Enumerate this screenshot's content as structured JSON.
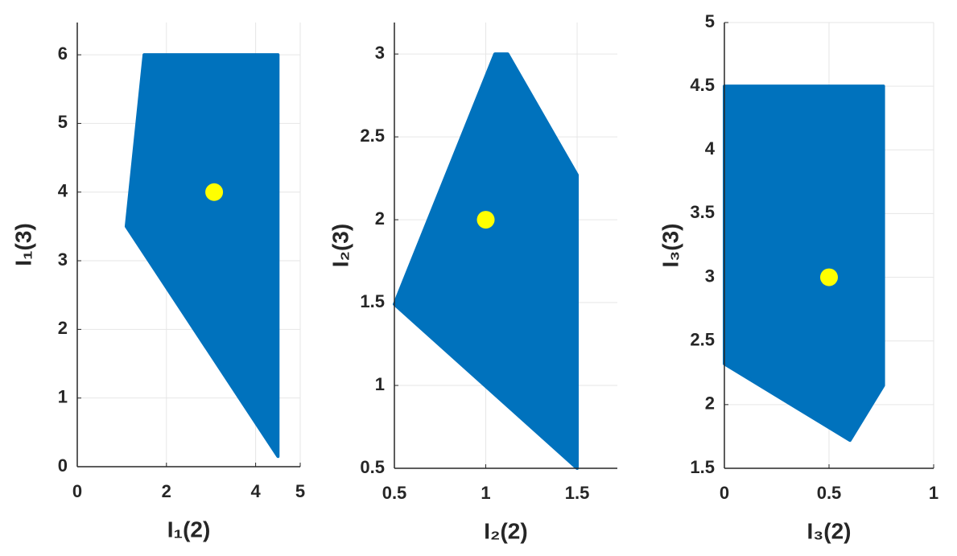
{
  "chart_data": [
    {
      "type": "region",
      "color": "#0072bd",
      "point_color": "#ffff00",
      "grid": true,
      "xlabel": "I₁(2)",
      "ylabel": "I₁(3)",
      "xlim": [
        0,
        5
      ],
      "ylim": [
        0,
        6.47
      ],
      "xticks": [
        0,
        2,
        4,
        5
      ],
      "yticks": [
        0,
        1,
        2,
        3,
        4,
        5,
        6
      ],
      "polygon": {
        "x": [
          1.5,
          4.5,
          4.5,
          1.1
        ],
        "y": [
          6,
          6,
          0.15,
          3.5
        ]
      },
      "point": {
        "x": 3.07,
        "y": 4
      }
    },
    {
      "type": "region",
      "color": "#0072bd",
      "point_color": "#ffff00",
      "grid": true,
      "xlabel": "I₂(2)",
      "ylabel": "I₂(3)",
      "xlim": [
        0.5,
        1.72
      ],
      "ylim": [
        0.5,
        3.19
      ],
      "xticks": [
        0.5,
        1,
        1.5
      ],
      "yticks": [
        0.5,
        1,
        1.5,
        2,
        2.5,
        3
      ],
      "polygon": {
        "x": [
          1.05,
          1.12,
          1.5,
          1.5,
          0.5
        ],
        "y": [
          3,
          3,
          2.27,
          0.5,
          1.49
        ]
      },
      "point": {
        "x": 1,
        "y": 2
      }
    },
    {
      "type": "region",
      "color": "#0072bd",
      "point_color": "#ffff00",
      "grid": true,
      "xlabel": "I₃(2)",
      "ylabel": "I₃(3)",
      "xlim": [
        0,
        1
      ],
      "ylim": [
        1.5,
        5
      ],
      "xticks": [
        0,
        0.5,
        1
      ],
      "yticks": [
        1.5,
        2,
        2.5,
        3,
        3.5,
        4,
        4.5,
        5
      ],
      "polygon": {
        "x": [
          0,
          0.76,
          0.76,
          0.6,
          0
        ],
        "y": [
          4.5,
          4.5,
          2.15,
          1.72,
          2.32
        ]
      },
      "point": {
        "x": 0.5,
        "y": 3
      }
    }
  ]
}
